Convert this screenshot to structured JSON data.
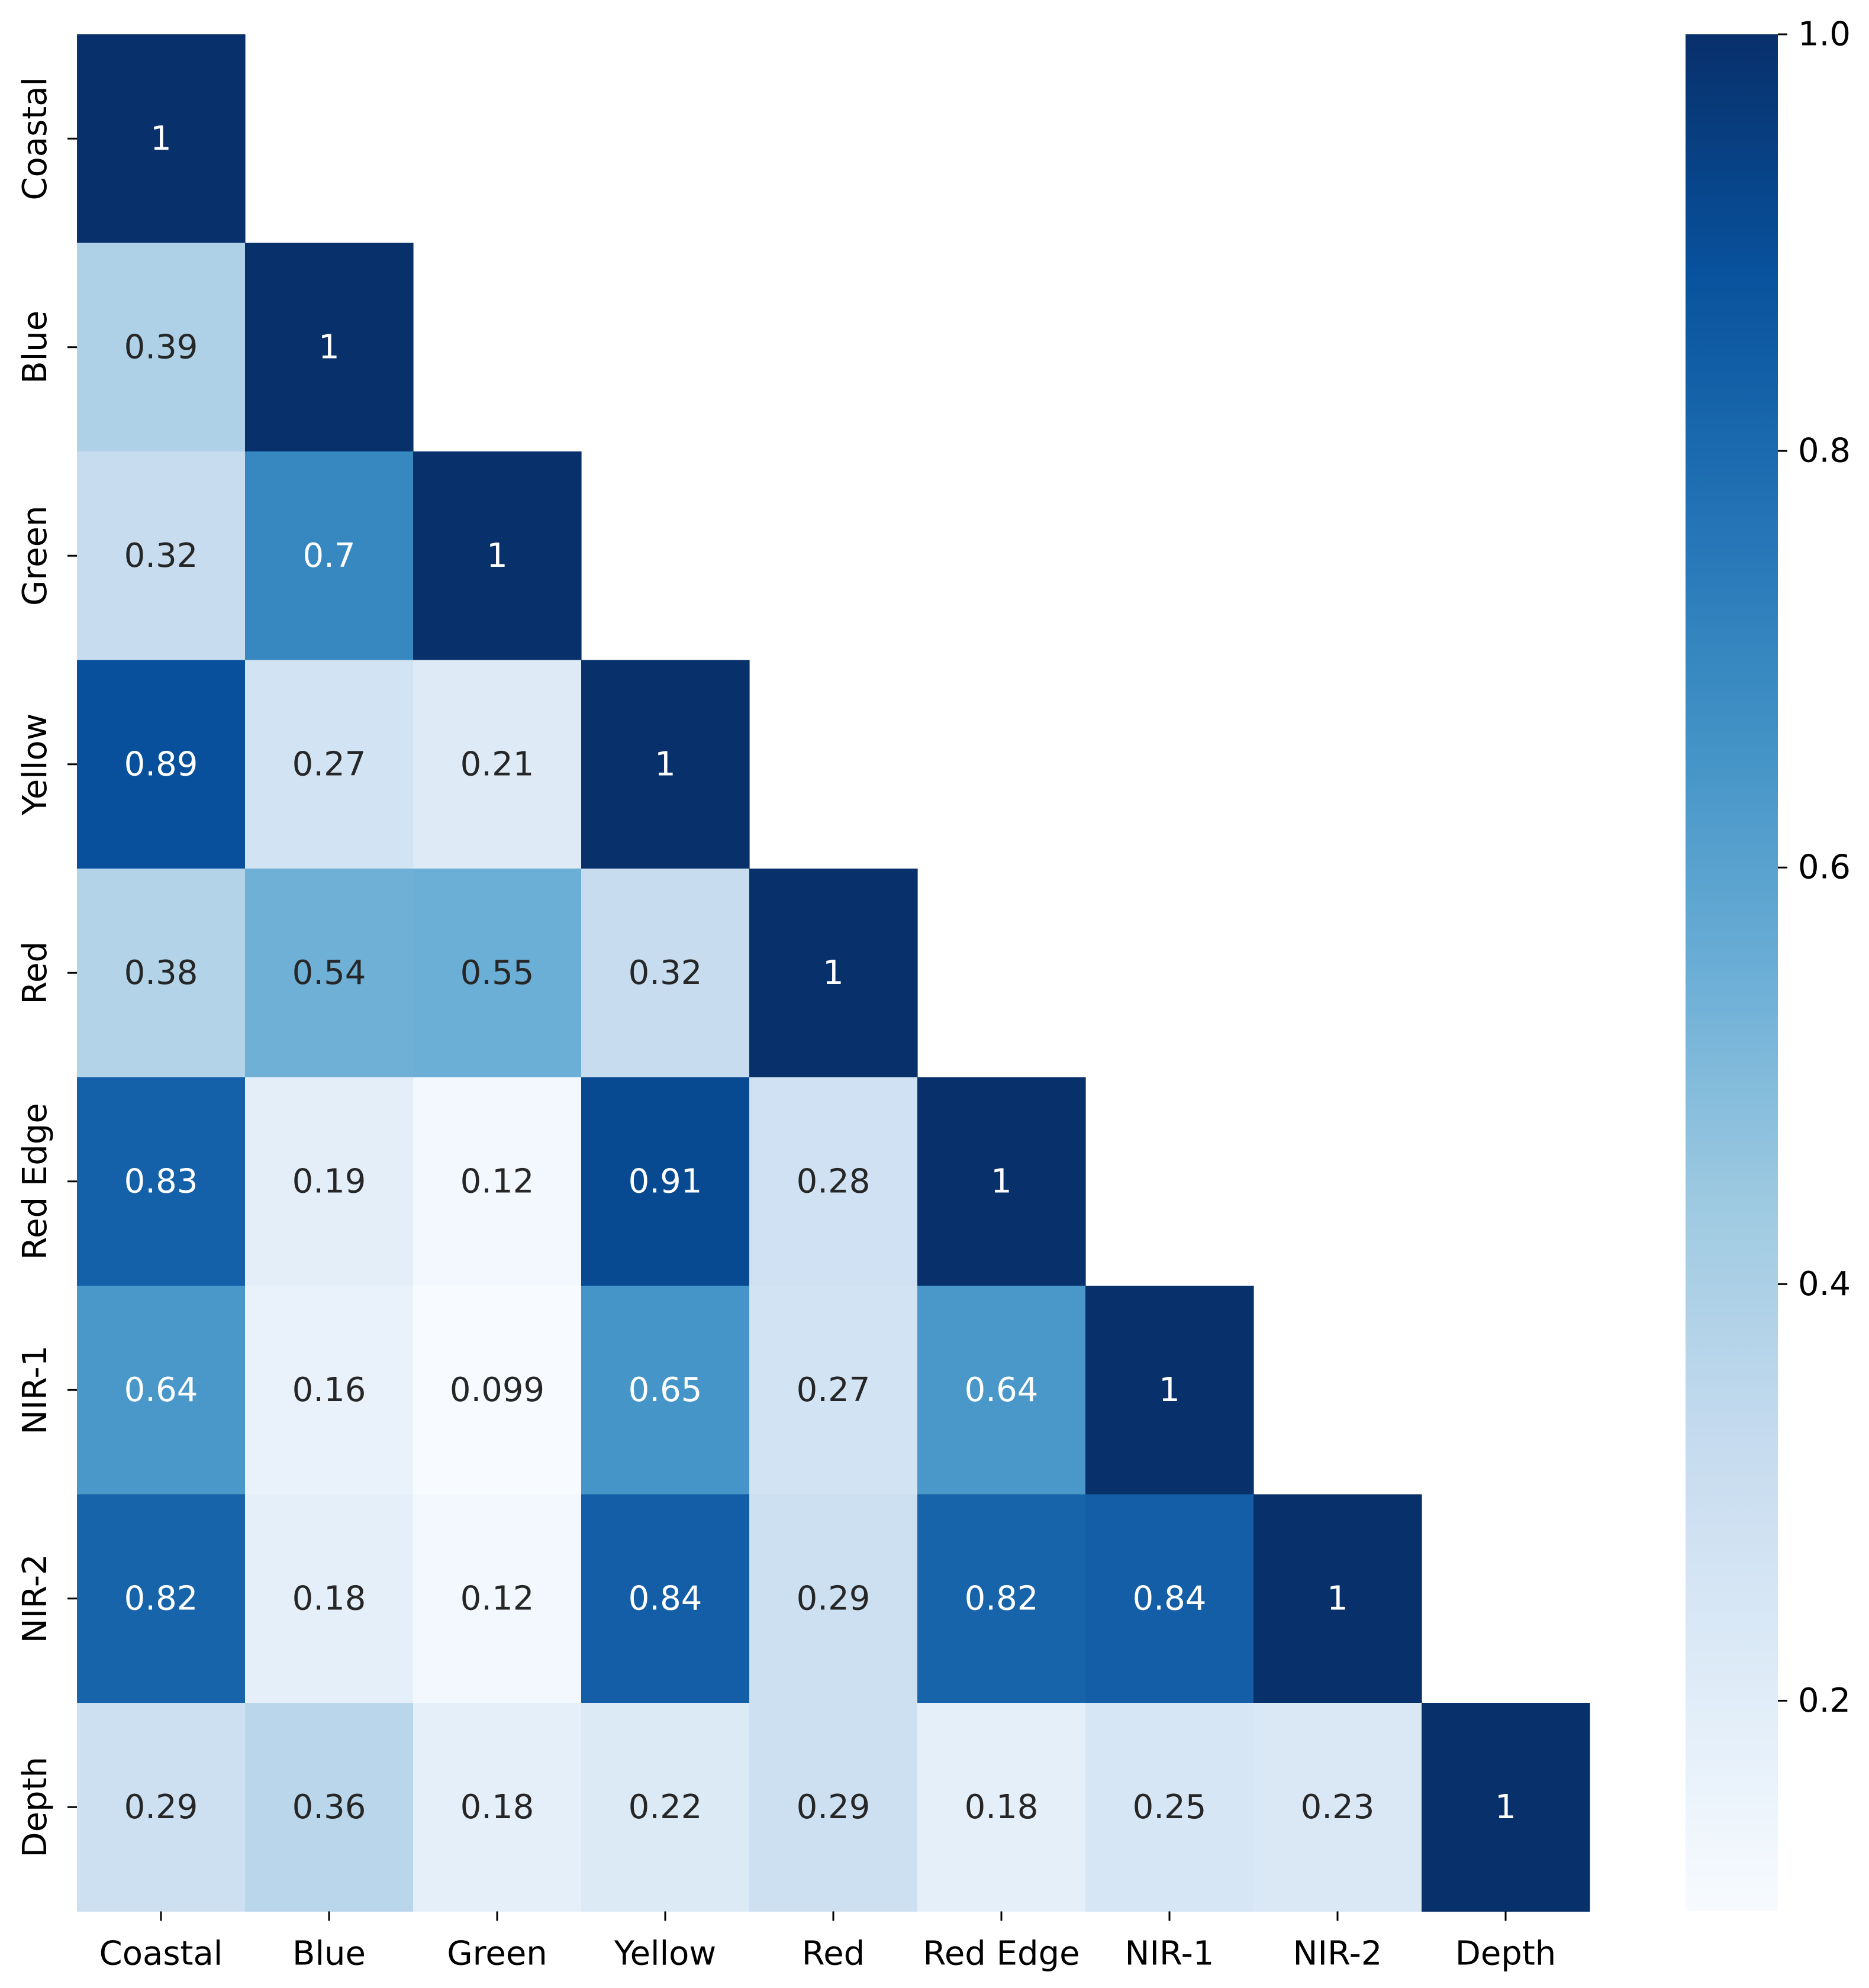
{
  "chart_data": {
    "type": "heatmap",
    "variant": "lower-triangle correlation matrix",
    "title": "",
    "xlabel": "",
    "ylabel": "",
    "labels": [
      "Coastal",
      "Blue",
      "Green",
      "Yellow",
      "Red",
      "Red Edge",
      "NIR-1",
      "NIR-2",
      "Depth"
    ],
    "annotations": [
      [
        "1"
      ],
      [
        "0.39",
        "1"
      ],
      [
        "0.32",
        "0.7",
        "1"
      ],
      [
        "0.89",
        "0.27",
        "0.21",
        "1"
      ],
      [
        "0.38",
        "0.54",
        "0.55",
        "0.32",
        "1"
      ],
      [
        "0.83",
        "0.19",
        "0.12",
        "0.91",
        "0.28",
        "1"
      ],
      [
        "0.64",
        "0.16",
        "0.099",
        "0.65",
        "0.27",
        "0.64",
        "1"
      ],
      [
        "0.82",
        "0.18",
        "0.12",
        "0.84",
        "0.29",
        "0.82",
        "0.84",
        "1"
      ],
      [
        "0.29",
        "0.36",
        "0.18",
        "0.22",
        "0.29",
        "0.18",
        "0.25",
        "0.23",
        "1"
      ]
    ],
    "values": [
      [
        1
      ],
      [
        0.39,
        1
      ],
      [
        0.32,
        0.7,
        1
      ],
      [
        0.89,
        0.27,
        0.21,
        1
      ],
      [
        0.38,
        0.54,
        0.55,
        0.32,
        1
      ],
      [
        0.83,
        0.19,
        0.12,
        0.91,
        0.28,
        1
      ],
      [
        0.64,
        0.16,
        0.099,
        0.65,
        0.27,
        0.64,
        1
      ],
      [
        0.82,
        0.18,
        0.12,
        0.84,
        0.29,
        0.82,
        0.84,
        1
      ],
      [
        0.29,
        0.36,
        0.18,
        0.22,
        0.29,
        0.18,
        0.25,
        0.23,
        1
      ]
    ],
    "colormap": "Blues",
    "colorbar": {
      "vmin": 0.099,
      "vmax": 1.0,
      "ticks": [
        0.2,
        0.4,
        0.6,
        0.8,
        1.0
      ],
      "tick_labels": [
        "0.2",
        "0.4",
        "0.6",
        "0.8",
        "1.0"
      ],
      "position": "right"
    },
    "colors": {
      "blues_stops": [
        "#f7fbff",
        "#deebf7",
        "#c6dbef",
        "#9ecae1",
        "#6baed6",
        "#4292c6",
        "#2171b5",
        "#08519c",
        "#08306b"
      ],
      "text_light": "#ffffff",
      "text_dark": "#262626",
      "axis": "#000000"
    }
  }
}
